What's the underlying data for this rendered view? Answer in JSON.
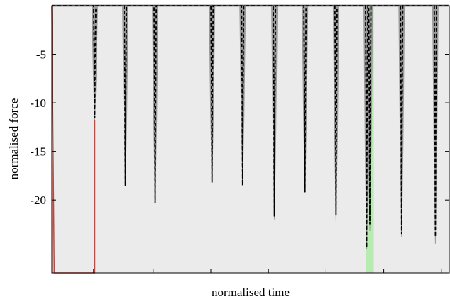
{
  "chart_data": {
    "type": "line",
    "title": "",
    "xlabel": "normalised time",
    "ylabel": "normalised force",
    "ylim": [
      -27.5,
      0
    ],
    "xlim": [
      0,
      1
    ],
    "yticks": [
      -5,
      -10,
      -15,
      -20
    ],
    "ytick_labels": [
      "-5",
      "-10",
      "-15",
      "-20"
    ],
    "xticks": [
      0.105,
      0.255,
      0.4,
      0.545,
      0.69,
      0.835,
      0.98
    ],
    "xtick_labels": [],
    "grid": false,
    "background": "#ebebeb",
    "band": {
      "x0": 0.79,
      "x1": 0.81,
      "color": "#b7ecb1"
    },
    "colors": {
      "reference": "#e8372c",
      "envelope": "#9a9a9a",
      "mean": "#000000"
    },
    "series": [
      {
        "style": "band",
        "spikes": [
          {
            "x": 0.108,
            "min": -11.8
          },
          {
            "x": 0.185,
            "min": -18.6
          },
          {
            "x": 0.26,
            "min": -20.2
          },
          {
            "x": 0.403,
            "min": -18.2
          },
          {
            "x": 0.48,
            "min": -18.5
          },
          {
            "x": 0.56,
            "min": -22.0
          },
          {
            "x": 0.637,
            "min": -19.3
          },
          {
            "x": 0.715,
            "min": -22.2
          },
          {
            "x": 0.792,
            "min": -25.1
          },
          {
            "x": 0.8,
            "min": -23.2
          },
          {
            "x": 0.88,
            "min": -23.8
          },
          {
            "x": 0.965,
            "min": -24.5
          }
        ]
      },
      {
        "style": "dashed",
        "spikes": [
          {
            "x": 0.108,
            "min": -11.6
          },
          {
            "x": 0.185,
            "min": -18.6
          },
          {
            "x": 0.26,
            "min": -20.3
          },
          {
            "x": 0.403,
            "min": -18.2
          },
          {
            "x": 0.48,
            "min": -18.5
          },
          {
            "x": 0.56,
            "min": -21.7
          },
          {
            "x": 0.637,
            "min": -19.2
          },
          {
            "x": 0.715,
            "min": -21.6
          },
          {
            "x": 0.792,
            "min": -24.9
          },
          {
            "x": 0.8,
            "min": -22.5
          },
          {
            "x": 0.88,
            "min": -23.5
          },
          {
            "x": 0.965,
            "min": -23.8
          }
        ]
      },
      {
        "style": "reference",
        "points": [
          [
            0.0,
            0.0
          ],
          [
            0.006,
            -27.5
          ],
          [
            0.108,
            -27.5
          ],
          [
            0.108,
            -11.8
          ]
        ]
      }
    ]
  }
}
